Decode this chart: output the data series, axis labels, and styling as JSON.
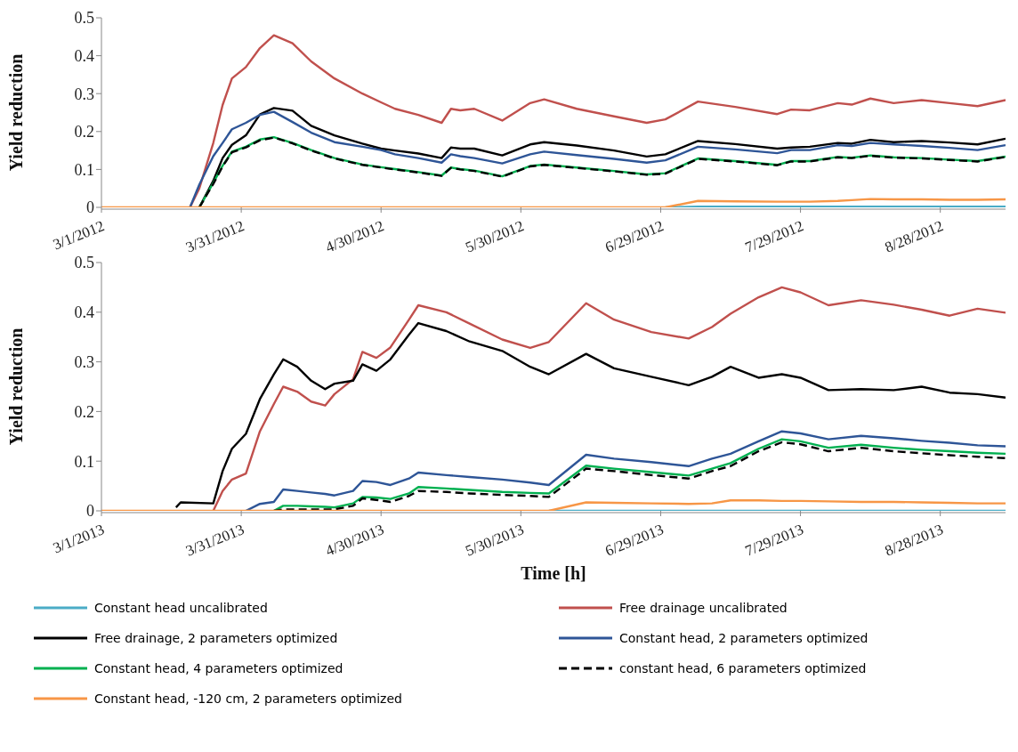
{
  "chart_data": [
    {
      "type": "line",
      "ylabel": "Yield reduction",
      "xlim": [
        "2012-03-01",
        "2012-09-11"
      ],
      "xticks": [
        {
          "value": "2012-03-01",
          "label": "3/1/2012"
        },
        {
          "value": "2012-03-31",
          "label": "3/31/2012"
        },
        {
          "value": "2012-04-30",
          "label": "4/30/2012"
        },
        {
          "value": "2012-05-30",
          "label": "5/30/2012"
        },
        {
          "value": "2012-06-29",
          "label": "6/29/2012"
        },
        {
          "value": "2012-07-29",
          "label": "7/29/2012"
        },
        {
          "value": "2012-08-28",
          "label": "8/28/2012"
        }
      ],
      "ylim": [
        0,
        0.5
      ],
      "yticks": [
        0,
        0.1,
        0.2,
        0.3,
        0.4,
        0.5
      ],
      "x": [
        "2012-03-01",
        "2012-03-20",
        "2012-03-22",
        "2012-03-25",
        "2012-03-27",
        "2012-03-29",
        "2012-04-01",
        "2012-04-04",
        "2012-04-07",
        "2012-04-11",
        "2012-04-15",
        "2012-04-20",
        "2012-04-26",
        "2012-04-30",
        "2012-05-03",
        "2012-05-08",
        "2012-05-13",
        "2012-05-15",
        "2012-05-17",
        "2012-05-20",
        "2012-05-26",
        "2012-06-01",
        "2012-06-04",
        "2012-06-11",
        "2012-06-19",
        "2012-06-26",
        "2012-06-30",
        "2012-07-07",
        "2012-07-15",
        "2012-07-24",
        "2012-07-27",
        "2012-07-31",
        "2012-08-06",
        "2012-08-09",
        "2012-08-13",
        "2012-08-18",
        "2012-08-24",
        "2012-08-30",
        "2012-09-05",
        "2012-09-11"
      ],
      "series": [
        {
          "color": "#4bacc6",
          "values": [
            null,
            null,
            null,
            null,
            null,
            null,
            null,
            null,
            null,
            null,
            null,
            null,
            null,
            null,
            null,
            null,
            null,
            null,
            null,
            null,
            null,
            null,
            null,
            null,
            null,
            null,
            0,
            0.002,
            0.002,
            0.002,
            0.002,
            0.002,
            0.002,
            0.002,
            0.002,
            0.002,
            0.002,
            0.002,
            0.002,
            0.002
          ]
        },
        {
          "color": "#c0504d",
          "values": [
            null,
            0,
            0.05,
            0.17,
            0.27,
            0.34,
            0.37,
            0.42,
            0.454,
            0.433,
            0.385,
            0.34,
            0.3,
            0.277,
            0.26,
            0.244,
            0.223,
            0.26,
            0.256,
            0.26,
            0.229,
            0.275,
            0.285,
            0.26,
            0.24,
            0.223,
            0.232,
            0.279,
            0.265,
            0.246,
            0.258,
            0.256,
            0.275,
            0.271,
            0.287,
            0.275,
            0.283,
            0.275,
            0.267,
            0.283
          ]
        },
        {
          "color": "#000000",
          "values": [
            null,
            null,
            0,
            0.07,
            0.13,
            0.165,
            0.19,
            0.245,
            0.262,
            0.255,
            0.215,
            0.19,
            0.168,
            0.155,
            0.15,
            0.142,
            0.13,
            0.158,
            0.155,
            0.155,
            0.137,
            0.166,
            0.172,
            0.163,
            0.15,
            0.134,
            0.14,
            0.175,
            0.167,
            0.155,
            0.158,
            0.16,
            0.17,
            0.168,
            0.178,
            0.172,
            0.175,
            0.171,
            0.166,
            0.181
          ]
        },
        {
          "color": "#2e5597",
          "values": [
            null,
            0,
            0.06,
            0.135,
            0.17,
            0.206,
            0.223,
            0.244,
            0.252,
            0.225,
            0.197,
            0.172,
            0.16,
            0.151,
            0.14,
            0.13,
            0.118,
            0.14,
            0.135,
            0.13,
            0.116,
            0.14,
            0.147,
            0.138,
            0.128,
            0.118,
            0.124,
            0.16,
            0.153,
            0.143,
            0.151,
            0.151,
            0.164,
            0.162,
            0.17,
            0.166,
            0.162,
            0.157,
            0.151,
            0.164
          ]
        },
        {
          "color": "#00b050",
          "values": [
            null,
            null,
            0,
            0.065,
            0.11,
            0.147,
            0.16,
            0.179,
            0.185,
            0.17,
            0.151,
            0.13,
            0.113,
            0.106,
            0.101,
            0.093,
            0.084,
            0.105,
            0.101,
            0.097,
            0.082,
            0.109,
            0.113,
            0.105,
            0.096,
            0.087,
            0.09,
            0.129,
            0.122,
            0.112,
            0.122,
            0.122,
            0.133,
            0.131,
            0.137,
            0.132,
            0.13,
            0.126,
            0.122,
            0.134
          ]
        },
        {
          "color": "#000000",
          "line_style": "dashed",
          "values": [
            null,
            null,
            0,
            0.062,
            0.108,
            0.145,
            0.158,
            0.177,
            0.184,
            0.169,
            0.15,
            0.129,
            0.112,
            0.105,
            0.1,
            0.092,
            0.083,
            0.104,
            0.1,
            0.096,
            0.081,
            0.108,
            0.112,
            0.104,
            0.095,
            0.086,
            0.089,
            0.128,
            0.121,
            0.111,
            0.121,
            0.121,
            0.132,
            0.13,
            0.136,
            0.131,
            0.129,
            0.125,
            0.121,
            0.133
          ]
        },
        {
          "color": "#f79646",
          "values": [
            0,
            0,
            0,
            0,
            0,
            0,
            0,
            0,
            0,
            0,
            0,
            0,
            0,
            0,
            0,
            0,
            0,
            0,
            0,
            0,
            0,
            0,
            0,
            0,
            0,
            0,
            0,
            0.017,
            0.016,
            0.015,
            0.015,
            0.015,
            0.017,
            0.019,
            0.022,
            0.021,
            0.021,
            0.02,
            0.02,
            0.021
          ]
        }
      ]
    },
    {
      "type": "line",
      "xlabel": "Time [h]",
      "ylabel": "Yield reduction",
      "legend": "bottom",
      "xlim": [
        "2013-03-01",
        "2013-09-11"
      ],
      "xticks": [
        {
          "value": "2013-03-01",
          "label": "3/1/2013"
        },
        {
          "value": "2013-03-31",
          "label": "3/31/2013"
        },
        {
          "value": "2013-04-30",
          "label": "4/30/2013"
        },
        {
          "value": "2013-05-30",
          "label": "5/30/2013"
        },
        {
          "value": "2013-06-29",
          "label": "6/29/2013"
        },
        {
          "value": "2013-07-29",
          "label": "7/29/2013"
        },
        {
          "value": "2013-08-28",
          "label": "8/28/2013"
        }
      ],
      "ylim": [
        0,
        0.5
      ],
      "yticks": [
        0,
        0.1,
        0.2,
        0.3,
        0.4,
        0.5
      ],
      "x": [
        "2013-03-01",
        "2013-03-17",
        "2013-03-18",
        "2013-03-25",
        "2013-03-27",
        "2013-03-29",
        "2013-04-01",
        "2013-04-04",
        "2013-04-07",
        "2013-04-09",
        "2013-04-12",
        "2013-04-15",
        "2013-04-18",
        "2013-04-20",
        "2013-04-24",
        "2013-04-26",
        "2013-04-29",
        "2013-05-02",
        "2013-05-06",
        "2013-05-08",
        "2013-05-14",
        "2013-05-19",
        "2013-05-26",
        "2013-06-01",
        "2013-06-05",
        "2013-06-13",
        "2013-06-19",
        "2013-06-27",
        "2013-07-05",
        "2013-07-10",
        "2013-07-14",
        "2013-07-20",
        "2013-07-25",
        "2013-07-29",
        "2013-08-04",
        "2013-08-11",
        "2013-08-18",
        "2013-08-24",
        "2013-08-30",
        "2013-09-05",
        "2013-09-11"
      ],
      "series": [
        {
          "name": "Constant head uncalibrated",
          "color": "#4bacc6",
          "values": [
            null,
            null,
            null,
            null,
            null,
            null,
            null,
            null,
            null,
            null,
            null,
            null,
            null,
            null,
            null,
            null,
            null,
            null,
            null,
            null,
            null,
            null,
            null,
            null,
            0,
            0,
            0,
            0,
            0,
            0,
            0,
            0,
            0,
            0,
            0,
            0,
            0,
            0,
            0,
            0,
            0
          ]
        },
        {
          "name": "Free drainage uncalibrated",
          "color": "#c0504d",
          "values": [
            null,
            null,
            null,
            0,
            0.04,
            0.063,
            0.075,
            0.16,
            0.215,
            0.25,
            0.24,
            0.22,
            0.212,
            0.235,
            0.265,
            0.32,
            0.308,
            0.329,
            0.385,
            0.414,
            0.4,
            0.377,
            0.345,
            0.328,
            0.34,
            0.418,
            0.385,
            0.36,
            0.347,
            0.37,
            0.397,
            0.43,
            0.45,
            0.44,
            0.414,
            0.424,
            0.415,
            0.405,
            0.393,
            0.407,
            0.399
          ]
        },
        {
          "name": "Free drainage, 2 parameters optimized",
          "color": "#000000",
          "values": [
            null,
            0.007,
            0.017,
            0.015,
            0.08,
            0.125,
            0.155,
            0.225,
            0.275,
            0.305,
            0.29,
            0.262,
            0.245,
            0.256,
            0.262,
            0.295,
            0.282,
            0.305,
            0.355,
            0.378,
            0.362,
            0.341,
            0.322,
            0.29,
            0.275,
            0.316,
            0.287,
            0.27,
            0.253,
            0.27,
            0.29,
            0.268,
            0.275,
            0.268,
            0.243,
            0.245,
            0.243,
            0.25,
            0.238,
            0.235,
            0.228
          ]
        },
        {
          "name": "Constant head, 2 parameters optimized",
          "color": "#2e5597",
          "values": [
            null,
            null,
            null,
            null,
            null,
            null,
            0,
            0.014,
            0.018,
            0.043,
            0.04,
            0.037,
            0.034,
            0.031,
            0.04,
            0.06,
            0.058,
            0.052,
            0.065,
            0.077,
            0.072,
            0.068,
            0.063,
            0.057,
            0.052,
            0.113,
            0.105,
            0.098,
            0.09,
            0.105,
            0.115,
            0.14,
            0.16,
            0.156,
            0.144,
            0.151,
            0.146,
            0.141,
            0.137,
            0.132,
            0.13
          ]
        },
        {
          "name": "Constant head, 4 parameters optimized",
          "color": "#00b050",
          "values": [
            null,
            null,
            null,
            null,
            null,
            null,
            null,
            null,
            0,
            0.01,
            0.01,
            0.009,
            0.008,
            0.007,
            0.015,
            0.028,
            0.027,
            0.024,
            0.035,
            0.048,
            0.045,
            0.042,
            0.038,
            0.036,
            0.035,
            0.091,
            0.085,
            0.078,
            0.071,
            0.085,
            0.096,
            0.125,
            0.144,
            0.14,
            0.127,
            0.133,
            0.127,
            0.123,
            0.12,
            0.117,
            0.115
          ]
        },
        {
          "name": "constant head, 6 parameters optimized",
          "color": "#000000",
          "line_style": "dashed",
          "values": [
            null,
            null,
            null,
            null,
            null,
            null,
            null,
            null,
            0,
            0.003,
            0.003,
            0.003,
            0.003,
            0.003,
            0.01,
            0.025,
            0.022,
            0.018,
            0.03,
            0.04,
            0.038,
            0.035,
            0.032,
            0.03,
            0.028,
            0.085,
            0.08,
            0.072,
            0.065,
            0.08,
            0.09,
            0.12,
            0.138,
            0.134,
            0.12,
            0.127,
            0.12,
            0.116,
            0.112,
            0.109,
            0.106
          ]
        },
        {
          "name": "Constant head, -120 cm, 2 parameters optimized",
          "color": "#f79646",
          "values": [
            0,
            0,
            0,
            0,
            0,
            0,
            0,
            0,
            0,
            0,
            0,
            0,
            0,
            0,
            0,
            0,
            0,
            0,
            0,
            0,
            0,
            0,
            0,
            0,
            0,
            0.017,
            0.016,
            0.015,
            0.014,
            0.015,
            0.021,
            0.021,
            0.02,
            0.02,
            0.019,
            0.018,
            0.018,
            0.017,
            0.016,
            0.015,
            0.015
          ]
        }
      ]
    }
  ]
}
